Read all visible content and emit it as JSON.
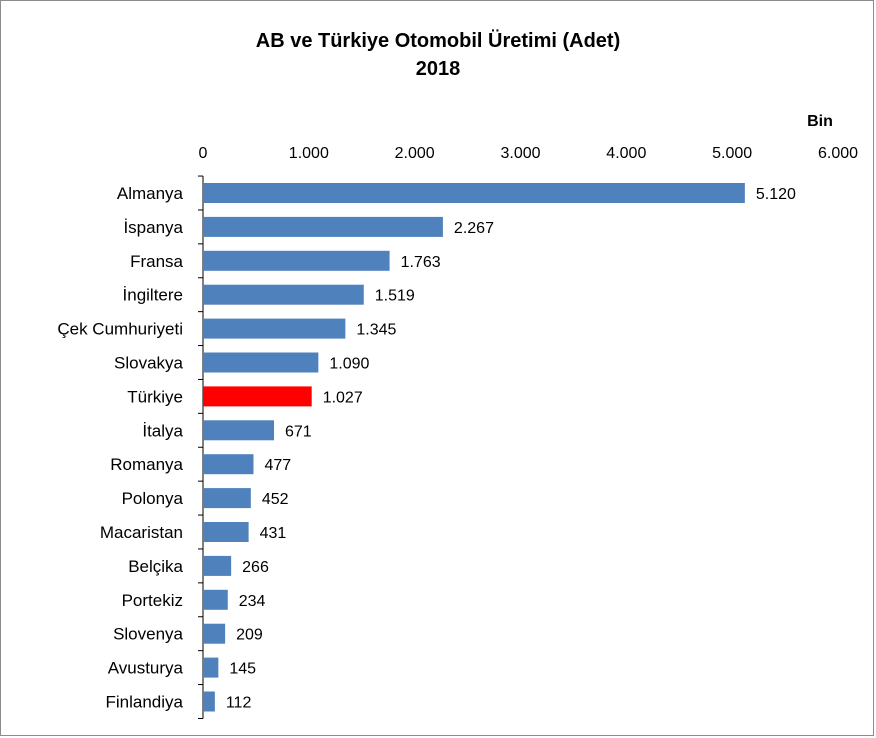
{
  "chart_data": {
    "type": "bar",
    "orientation": "horizontal",
    "title": "AB ve Türkiye Otomobil Üretimi (Adet)",
    "subtitle": "2018",
    "unit": "Bin",
    "xlim": [
      0,
      6000
    ],
    "ticks": [
      0,
      1000,
      2000,
      3000,
      4000,
      5000,
      6000
    ],
    "tick_labels": [
      "0",
      "1.000",
      "2.000",
      "3.000",
      "4.000",
      "5.000",
      "6.000"
    ],
    "axis_position": "top",
    "grid": false,
    "categories": [
      "Almanya",
      "İspanya",
      "Fransa",
      "İngiltere",
      "Çek Cumhuriyeti",
      "Slovakya",
      "Türkiye",
      "İtalya",
      "Romanya",
      "Polonya",
      "Macaristan",
      "Belçika",
      "Portekiz",
      "Slovenya",
      "Avusturya",
      "Finlandiya"
    ],
    "values": [
      5120,
      2267,
      1763,
      1519,
      1345,
      1090,
      1027,
      671,
      477,
      452,
      431,
      266,
      234,
      209,
      145,
      112
    ],
    "value_labels": [
      "5.120",
      "2.267",
      "1.763",
      "1.519",
      "1.345",
      "1.090",
      "1.027",
      "671",
      "477",
      "452",
      "431",
      "266",
      "234",
      "209",
      "145",
      "112"
    ],
    "colors": {
      "default_bar": "#4f81bd",
      "highlight_bar": "#ff0000",
      "axis": "#000000"
    },
    "highlight_category": "Türkiye"
  }
}
